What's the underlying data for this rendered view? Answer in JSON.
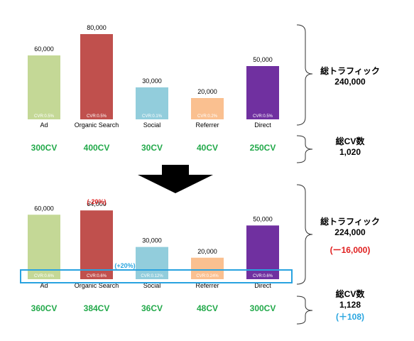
{
  "colors": {
    "cv_green": "#22a94a",
    "red_note": "#e02020",
    "blue_note": "#2aa6e0",
    "highlight_box": "#29a3e0"
  },
  "chart_data": [
    {
      "type": "bar",
      "categories": [
        "Ad",
        "Organic Search",
        "Social",
        "Referrer",
        "Direct"
      ],
      "values": [
        60000,
        80000,
        30000,
        20000,
        50000
      ],
      "value_labels": [
        "60,000",
        "80,000",
        "30,000",
        "20,000",
        "50,000"
      ],
      "bar_colors": [
        "#c4d896",
        "#c0504d",
        "#92cddc",
        "#fac090",
        "#7030a0"
      ],
      "cvr_labels": [
        "CVR:0.5%",
        "CVR:0.5%",
        "CVR:0.1%",
        "CVR:0.2%",
        "CVR:0.5%"
      ],
      "cv_labels": [
        "300CV",
        "400CV",
        "30CV",
        "40CV",
        "250CV"
      ],
      "ylim": [
        0,
        80000
      ],
      "traffic_title": "総トラフィック",
      "traffic_total": "240,000",
      "cv_title": "総CV数",
      "cv_total": "1,020"
    },
    {
      "type": "bar",
      "categories": [
        "Ad",
        "Organic Search",
        "Social",
        "Referrer",
        "Direct"
      ],
      "values": [
        60000,
        64000,
        30000,
        20000,
        50000
      ],
      "value_labels": [
        "60,000",
        "64,000",
        "30,000",
        "20,000",
        "50,000"
      ],
      "bar_colors": [
        "#c4d896",
        "#c0504d",
        "#92cddc",
        "#fac090",
        "#7030a0"
      ],
      "cvr_labels": [
        "CVR:0.6%",
        "CVR:0.6%",
        "CVR:0.12%",
        "CVR:0.24%",
        "CVR:0.6%"
      ],
      "cv_labels": [
        "360CV",
        "384CV",
        "36CV",
        "48CV",
        "300CV"
      ],
      "ylim": [
        0,
        80000
      ],
      "organic_change": "(-20%)",
      "cvr_change": "(+20%)",
      "traffic_title": "総トラフィック",
      "traffic_total": "224,000",
      "traffic_change": "(ー16,000)",
      "cv_title": "総CV数",
      "cv_total": "1,128",
      "cv_change": "(＋108)"
    }
  ]
}
